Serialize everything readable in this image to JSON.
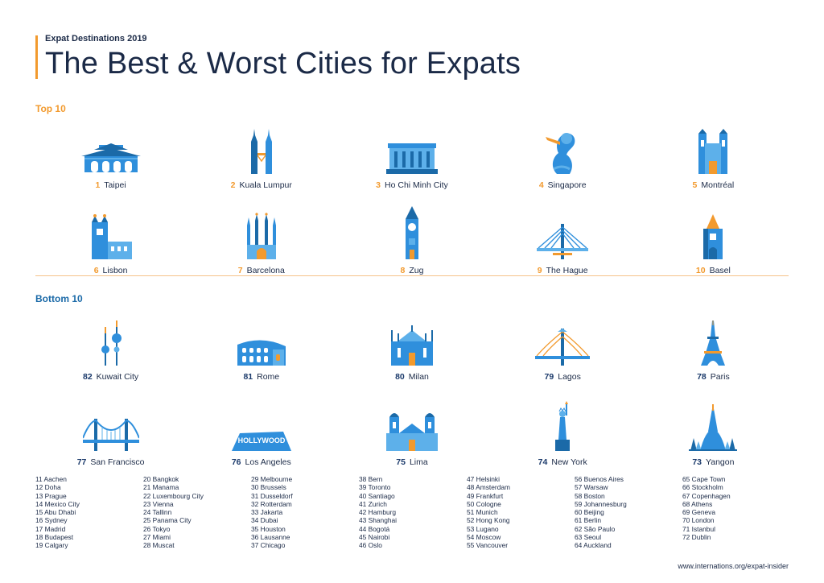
{
  "header": {
    "subtitle": "Expat Destinations 2019",
    "title": "The Best & Worst Cities for Expats"
  },
  "colors": {
    "accent_orange": "#f29a2e",
    "blue": "#2f8fdc",
    "light_blue": "#5db0ea",
    "navy": "#1b2a47"
  },
  "top": {
    "label": "Top 10",
    "cities": [
      {
        "rank": "1",
        "name": "Taipei",
        "icon": "taipei-gate-icon"
      },
      {
        "rank": "2",
        "name": "Kuala Lumpur",
        "icon": "petronas-towers-icon"
      },
      {
        "rank": "3",
        "name": "Ho Chi Minh City",
        "icon": "city-hall-icon"
      },
      {
        "rank": "4",
        "name": "Singapore",
        "icon": "merlion-icon"
      },
      {
        "rank": "5",
        "name": "Montréal",
        "icon": "notre-dame-basilica-icon"
      },
      {
        "rank": "6",
        "name": "Lisbon",
        "icon": "belem-tower-icon"
      },
      {
        "rank": "7",
        "name": "Barcelona",
        "icon": "sagrada-familia-icon"
      },
      {
        "rank": "8",
        "name": "Zug",
        "icon": "clock-tower-icon"
      },
      {
        "rank": "9",
        "name": "The Hague",
        "icon": "cable-bridge-icon"
      },
      {
        "rank": "10",
        "name": "Basel",
        "icon": "basel-gate-icon"
      }
    ]
  },
  "bottom": {
    "label": "Bottom 10",
    "cities": [
      {
        "rank": "82",
        "name": "Kuwait City",
        "icon": "kuwait-towers-icon"
      },
      {
        "rank": "81",
        "name": "Rome",
        "icon": "colosseum-icon"
      },
      {
        "rank": "80",
        "name": "Milan",
        "icon": "milan-cathedral-icon"
      },
      {
        "rank": "79",
        "name": "Lagos",
        "icon": "lagos-bridge-icon"
      },
      {
        "rank": "78",
        "name": "Paris",
        "icon": "eiffel-tower-icon"
      },
      {
        "rank": "77",
        "name": "San Francisco",
        "icon": "golden-gate-bridge-icon"
      },
      {
        "rank": "76",
        "name": "Los Angeles",
        "icon": "hollywood-sign-icon"
      },
      {
        "rank": "75",
        "name": "Lima",
        "icon": "lima-cathedral-icon"
      },
      {
        "rank": "74",
        "name": "New York",
        "icon": "statue-of-liberty-icon"
      },
      {
        "rank": "73",
        "name": "Yangon",
        "icon": "shwedagon-pagoda-icon"
      }
    ]
  },
  "hollywood_text": "HOLLYWOOD",
  "list_columns": [
    [
      "11 Aachen",
      "12 Doha",
      "13 Prague",
      "14 Mexico City",
      "15 Abu Dhabi",
      "16 Sydney",
      "17 Madrid",
      "18 Budapest",
      "19 Calgary"
    ],
    [
      "20 Bangkok",
      "21 Manama",
      "22 Luxembourg City",
      "23 Vienna",
      "24 Tallinn",
      "25 Panama City",
      "26 Tokyo",
      "27 Miami",
      "28 Muscat"
    ],
    [
      "29 Melbourne",
      "30 Brussels",
      "31 Dusseldorf",
      "32 Rotterdam",
      "33 Jakarta",
      "34 Dubai",
      "35 Houston",
      "36 Lausanne",
      "37 Chicago"
    ],
    [
      "38 Bern",
      "39 Toronto",
      "40 Santiago",
      "41 Zurich",
      "42 Hamburg",
      "43 Shanghai",
      "44 Bogotá",
      "45 Nairobi",
      "46 Oslo"
    ],
    [
      "47 Helsinki",
      "48 Amsterdam",
      "49 Frankfurt",
      "50 Cologne",
      "51 Munich",
      "52 Hong Kong",
      "53 Lugano",
      "54 Moscow",
      "55 Vancouver"
    ],
    [
      "56 Buenos Aires",
      "57 Warsaw",
      "58 Boston",
      "59 Johannesburg",
      "60 Beijing",
      "61 Berlin",
      "62 São Paulo",
      "63 Seoul",
      "64 Auckland"
    ],
    [
      "65 Cape Town",
      "66 Stockholm",
      "67 Copenhagen",
      "68 Athens",
      "69 Geneva",
      "70 London",
      "71 Istanbul",
      "72 Dublin"
    ]
  ],
  "footer": {
    "url": "www.internations.org/expat-insider"
  }
}
